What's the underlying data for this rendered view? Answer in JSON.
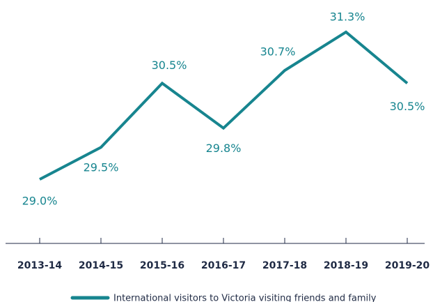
{
  "chart_data": {
    "type": "line",
    "categories": [
      "2013-14",
      "2014-15",
      "2015-16",
      "2016-17",
      "2017-18",
      "2018-19",
      "2019-20"
    ],
    "series": [
      {
        "name": "International visitors to Victoria visiting friends and family",
        "color": "#17858f",
        "values": [
          29.0,
          29.5,
          30.5,
          29.8,
          30.7,
          31.3,
          30.5
        ],
        "value_labels": [
          "29.0%",
          "29.5%",
          "30.5%",
          "29.8%",
          "30.7%",
          "31.3%",
          "30.5%"
        ]
      }
    ],
    "ylim": [
      28,
      31.8
    ],
    "legend": "bottom"
  }
}
